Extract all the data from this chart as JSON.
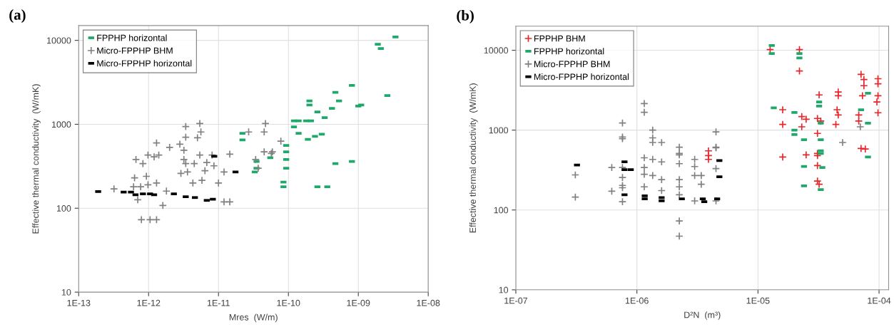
{
  "chart_data": [
    {
      "type": "scatter",
      "title": "(a)",
      "xlabel": "Mres  (W/m)",
      "ylabel": "Effective thermal conductivity  (W/mK)",
      "log": "xy",
      "grid": true,
      "legend": "top left",
      "xlim": [
        1e-13,
        1e-08
      ],
      "ylim": [
        10,
        15000
      ],
      "xticks": [
        {
          "value": 1e-13,
          "label": "1E-13"
        },
        {
          "value": 1e-12,
          "label": "1E-12"
        },
        {
          "value": 1e-11,
          "label": "1E-11"
        },
        {
          "value": 1e-10,
          "label": "1E-10"
        },
        {
          "value": 1e-09,
          "label": "1E-09"
        },
        {
          "value": 1e-08,
          "label": "1E-08"
        }
      ],
      "yticks": [
        10,
        100,
        1000,
        10000
      ],
      "series": [
        {
          "name": "FPPHP horizontal",
          "color": "#1ea86a",
          "marker": "square",
          "x": [
            3.4e-09,
            1.9e-09,
            2.1e-09,
            2.6e-09,
            8.1e-10,
            4.7e-10,
            5.3e-10,
            4.2e-10,
            2.6e-10,
            2e-10,
            2e-10,
            1e-09,
            1.1e-09,
            1.2e-10,
            1.4e-10,
            1.8e-10,
            2.1e-10,
            3.3e-10,
            1.2e-10,
            1.4e-10,
            1.9e-10,
            2.4e-10,
            3e-10,
            9.3e-11,
            9.3e-11,
            9.3e-11,
            9.3e-11,
            8.5e-11,
            8.5e-11,
            4.7e-10,
            8.1e-10,
            2.6e-10,
            3.6e-10,
            3.5e-11,
            3.5e-11,
            3.3e-11,
            5.5e-11,
            2.2e-11,
            2.2e-11
          ],
          "values": [
            11000,
            9000,
            8000,
            2200,
            2900,
            2400,
            1900,
            1550,
            1400,
            1700,
            1900,
            1650,
            1700,
            1100,
            1100,
            1100,
            1100,
            1200,
            930,
            780,
            660,
            720,
            760,
            560,
            470,
            380,
            300,
            205,
            180,
            340,
            360,
            180,
            180,
            360,
            300,
            270,
            400,
            780,
            650
          ]
        },
        {
          "name": "Micro-FPPHP BHM",
          "color": "#808080",
          "marker": "cross",
          "x": [
            3.2e-13,
            6.6e-13,
            8.3e-13,
            9.8e-13,
            1.2e-12,
            1.4e-12,
            6.3e-13,
            9.3e-13,
            1.3e-12,
            1.8e-12,
            6.1e-13,
            7.7e-13,
            9.8e-13,
            7e-13,
            1.6e-12,
            7.9e-13,
            1.05e-12,
            1.3e-12,
            2e-12,
            2.8e-12,
            3.2e-12,
            3.2e-12,
            3.4e-12,
            4.5e-12,
            2.9e-12,
            3.6e-12,
            4.3e-12,
            5.8e-12,
            5.4e-12,
            6.8e-12,
            8.1e-12,
            8.6e-12,
            6.4e-12,
            1e-11,
            1.45e-11,
            1.2e-11,
            1.2e-11,
            1.45e-11,
            3.4e-12,
            5.4e-12,
            5.6e-12,
            3.4e-12,
            5e-12,
            1.3e-12,
            2.7e-11,
            4.5e-11,
            4.7e-11,
            7.8e-11,
            4.5e-11,
            5.9e-11,
            5.7e-11,
            3.7e-11,
            3.4e-11
          ],
          "values": [
            170,
            380,
            340,
            430,
            410,
            430,
            230,
            240,
            200,
            160,
            180,
            180,
            190,
            126,
            108,
            73,
            73,
            73,
            530,
            580,
            490,
            380,
            340,
            340,
            260,
            270,
            200,
            215,
            430,
            350,
            430,
            320,
            280,
            200,
            440,
            270,
            119,
            119,
            940,
            1020,
            810,
            700,
            690,
            600,
            810,
            810,
            1020,
            630,
            470,
            470,
            450,
            300,
            380
          ]
        },
        {
          "name": "Micro-FPPHP horizontal",
          "color": "#000000",
          "marker": "square",
          "x": [
            1.9e-13,
            4.4e-13,
            5.6e-13,
            6.5e-13,
            8.3e-13,
            1.05e-12,
            1.2e-12,
            2.3e-12,
            3.4e-12,
            4.6e-12,
            6.8e-12,
            8.3e-12,
            1.75e-11,
            8.7e-12
          ],
          "values": [
            158,
            156,
            156,
            145,
            148,
            148,
            145,
            148,
            137,
            134,
            124,
            128,
            270,
            415
          ]
        }
      ]
    },
    {
      "type": "scatter",
      "title": "(b)",
      "xlabel": "D²N  (m³)",
      "ylabel": "Effective thermal conductivity  (W/mK)",
      "log": "xy",
      "grid": true,
      "legend": "top left",
      "xlim": [
        1e-07,
        0.00012
      ],
      "ylim": [
        10,
        20000
      ],
      "xticks": [
        {
          "value": 1e-07,
          "label": "1E-07"
        },
        {
          "value": 1e-06,
          "label": "1E-06"
        },
        {
          "value": 1e-05,
          "label": "1E-05"
        },
        {
          "value": 0.0001,
          "label": "1E-04"
        }
      ],
      "yticks": [
        10,
        100,
        1000,
        10000
      ],
      "series": [
        {
          "name": "FPPHP BHM",
          "color": "#e8262a",
          "marker": "cross",
          "x": [
            1.26e-05,
            2.2e-05,
            2.2e-05,
            1.6e-05,
            1.6e-05,
            2.3e-05,
            2.5e-05,
            2.3e-05,
            3.2e-05,
            3.1e-05,
            3.3e-05,
            3.1e-05,
            4.6e-05,
            4.6e-05,
            4.5e-05,
            4.6e-05,
            4.4e-05,
            7.1e-05,
            7.5e-05,
            7.5e-05,
            7.3e-05,
            6.8e-05,
            6.8e-05,
            7.7e-05,
            9.8e-05,
            9.8e-05,
            9.8e-05,
            9.6e-05,
            9.8e-05,
            1.6e-05,
            2.5e-05,
            3.1e-05,
            3.9e-06,
            3.9e-06,
            3.9e-06,
            3.1e-05,
            3.1e-05,
            3.1e-05,
            3.2e-05,
            7.1e-05
          ],
          "values": [
            10200,
            10200,
            5500,
            1800,
            1180,
            1480,
            1370,
            1100,
            2760,
            1400,
            1300,
            910,
            3000,
            2700,
            1800,
            1550,
            1180,
            5000,
            4300,
            3600,
            2700,
            1550,
            1300,
            580,
            4400,
            3800,
            2700,
            2250,
            1650,
            460,
            490,
            480,
            550,
            480,
            430,
            510,
            360,
            230,
            210,
            590
          ]
        },
        {
          "name": "FPPHP horizontal",
          "color": "#1ea86a",
          "marker": "square",
          "x": [
            1.3e-05,
            1.3e-05,
            2.2e-05,
            2.2e-05,
            1.35e-05,
            2e-05,
            2e-05,
            2e-05,
            2.4e-05,
            3.2e-05,
            3.2e-05,
            3.3e-05,
            3.3e-05,
            3.3e-05,
            8.1e-05,
            8.1e-05,
            7.1e-05,
            8.1e-05,
            2.4e-05,
            2.4e-05,
            3.3e-05,
            3.4e-05,
            3.3e-05
          ],
          "values": [
            11500,
            9100,
            9100,
            8000,
            1900,
            1660,
            1000,
            880,
            760,
            2250,
            2000,
            1220,
            760,
            550,
            2900,
            1220,
            1800,
            460,
            350,
            200,
            180,
            340,
            510
          ]
        },
        {
          "name": "Micro-FPPHP BHM",
          "color": "#808080",
          "marker": "cross",
          "x": [
            7.6e-07,
            7.6e-07,
            7.6e-07,
            1.15e-06,
            1.15e-06,
            1.35e-06,
            1.35e-06,
            1.35e-06,
            1.6e-06,
            2.24e-06,
            4.5e-06,
            4.5e-06,
            5e-05,
            7e-05,
            3.1e-07,
            3.1e-07,
            6.2e-07,
            6.2e-07,
            7.6e-07,
            7.6e-07,
            7.6e-07,
            7.6e-07,
            7.6e-07,
            1.15e-06,
            1.15e-06,
            1.15e-06,
            1.15e-06,
            1.35e-06,
            1.35e-06,
            1.6e-06,
            1.6e-06,
            1.6e-06,
            2.24e-06,
            2.24e-06,
            2.24e-06,
            2.24e-06,
            2.24e-06,
            2.24e-06,
            2.24e-06,
            2.24e-06,
            3e-06,
            3e-06,
            3e-06,
            3e-06,
            3.4e-06,
            3.4e-06,
            4.5e-06,
            4.5e-06,
            4.5e-06
          ],
          "values": [
            1230,
            820,
            780,
            2150,
            1670,
            1000,
            800,
            700,
            700,
            510,
            950,
            600,
            700,
            1100,
            275,
            145,
            340,
            172,
            340,
            255,
            203,
            190,
            127,
            450,
            340,
            280,
            195,
            430,
            270,
            400,
            240,
            175,
            610,
            490,
            380,
            240,
            195,
            155,
            73,
            47,
            430,
            350,
            270,
            130,
            270,
            210,
            610,
            330,
            130
          ]
        },
        {
          "name": "Micro-FPPHP horizontal",
          "color": "#000000",
          "marker": "square",
          "x": [
            3.2e-07,
            7.9e-07,
            7.9e-07,
            8.9e-07,
            7.9e-07,
            1.16e-06,
            1.16e-06,
            1.6e-06,
            1.6e-06,
            2.35e-06,
            3.5e-06,
            3.6e-06,
            4.8e-06,
            4.8e-06,
            4.6e-06
          ],
          "values": [
            365,
            400,
            320,
            320,
            155,
            150,
            138,
            143,
            130,
            138,
            138,
            127,
            415,
            260,
            138
          ]
        }
      ]
    }
  ]
}
